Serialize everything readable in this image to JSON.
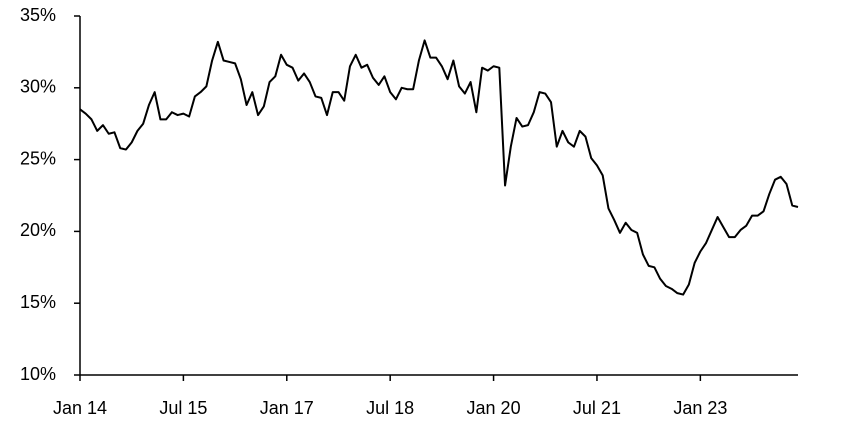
{
  "chart_data": {
    "type": "line",
    "categories": [
      "Jan 14",
      null,
      null,
      null,
      null,
      null,
      null,
      null,
      null,
      null,
      null,
      null,
      null,
      null,
      null,
      null,
      null,
      null,
      "Jul 15",
      null,
      null,
      null,
      null,
      null,
      null,
      null,
      null,
      null,
      null,
      null,
      null,
      null,
      null,
      null,
      null,
      null,
      "Jan 17",
      null,
      null,
      null,
      null,
      null,
      null,
      null,
      null,
      null,
      null,
      null,
      null,
      null,
      null,
      null,
      null,
      null,
      "Jul 18",
      null,
      null,
      null,
      null,
      null,
      null,
      null,
      null,
      null,
      null,
      null,
      null,
      null,
      null,
      null,
      null,
      null,
      "Jan 20",
      null,
      null,
      null,
      null,
      null,
      null,
      null,
      null,
      null,
      null,
      null,
      null,
      null,
      null,
      null,
      null,
      null,
      "Jul 21",
      null,
      null,
      null,
      null,
      null,
      null,
      null,
      null,
      null,
      null,
      null,
      null,
      null,
      null,
      null,
      null,
      null,
      "Jan 23",
      null,
      null,
      null,
      null,
      null,
      null,
      null,
      null,
      null,
      null,
      null,
      null,
      null,
      null,
      null,
      null,
      null
    ],
    "values": [
      28.5,
      28.2,
      27.8,
      27.0,
      27.4,
      26.8,
      26.9,
      25.8,
      25.7,
      26.2,
      27.0,
      27.5,
      28.8,
      29.7,
      27.8,
      27.8,
      28.3,
      28.1,
      28.2,
      28.0,
      29.4,
      29.7,
      30.1,
      31.9,
      33.2,
      31.9,
      31.8,
      31.7,
      30.6,
      28.8,
      29.7,
      28.1,
      28.7,
      30.4,
      30.8,
      32.3,
      31.6,
      31.4,
      30.5,
      31.0,
      30.4,
      29.4,
      29.3,
      28.1,
      29.7,
      29.7,
      29.1,
      31.5,
      32.3,
      31.4,
      31.6,
      30.7,
      30.2,
      30.8,
      29.7,
      29.2,
      30.0,
      29.9,
      29.9,
      31.9,
      33.3,
      32.1,
      32.1,
      31.5,
      30.6,
      31.9,
      30.1,
      29.6,
      30.4,
      28.3,
      31.4,
      31.2,
      31.5,
      31.4,
      23.2,
      25.9,
      27.9,
      27.3,
      27.4,
      28.3,
      29.7,
      29.6,
      29.0,
      25.9,
      27.0,
      26.2,
      25.9,
      27.0,
      26.6,
      25.1,
      24.6,
      23.9,
      21.6,
      20.8,
      19.9,
      20.6,
      20.1,
      19.9,
      18.4,
      17.6,
      17.5,
      16.7,
      16.2,
      16.0,
      15.7,
      15.6,
      16.3,
      17.8,
      18.6,
      19.2,
      20.1,
      21.0,
      20.3,
      19.6,
      19.6,
      20.1,
      20.4,
      21.1,
      21.1,
      21.4,
      22.6,
      23.6,
      23.8,
      23.3,
      21.8,
      21.7
    ],
    "color": "#000000",
    "ylim": [
      10,
      35
    ],
    "yticks": [
      {
        "value": 10,
        "label": "10%"
      },
      {
        "value": 15,
        "label": "15%"
      },
      {
        "value": 20,
        "label": "20%"
      },
      {
        "value": 25,
        "label": "25%"
      },
      {
        "value": 30,
        "label": "30%"
      },
      {
        "value": 35,
        "label": "35%"
      }
    ]
  }
}
